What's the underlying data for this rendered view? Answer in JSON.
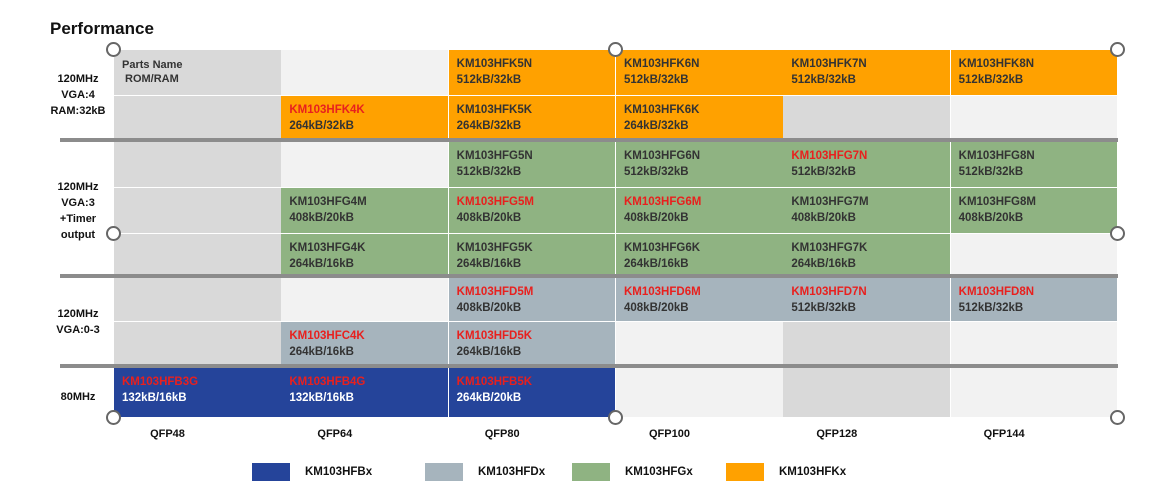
{
  "title": "Performance",
  "colors": {
    "HFB": "#25449a",
    "HFD": "#a6b4bd",
    "HFG": "#8fb382",
    "HFK": "#ffa100",
    "empty_gray": "#d9d9d9",
    "empty_light": "#f2f2f2",
    "separator": "#8c8c8c",
    "red_text": "#e8201e"
  },
  "header_cell": {
    "line1": "Parts Name",
    "line2": "ROM/RAM"
  },
  "row_groups": [
    {
      "lines": [
        "120MHz",
        "VGA:4",
        "RAM:32kB"
      ]
    },
    {
      "lines": [
        "120MHz",
        "VGA:3",
        "+Timer",
        "output"
      ]
    },
    {
      "lines": [
        "120MHz",
        "VGA:0-3"
      ]
    },
    {
      "lines": [
        "80MHz"
      ]
    }
  ],
  "columns": [
    "QFP48",
    "QFP64",
    "QFP80",
    "QFP100",
    "QFP128",
    "QFP144"
  ],
  "rows": [
    [
      null,
      null,
      {
        "name": "KM103HFK5N",
        "mem": "512kB/32kB",
        "family": "HFK",
        "red": false
      },
      {
        "name": "KM103HFK6N",
        "mem": "512kB/32kB",
        "family": "HFK",
        "red": false
      },
      {
        "name": "KM103HFK7N",
        "mem": "512kB/32kB",
        "family": "HFK",
        "red": false
      },
      {
        "name": "KM103HFK8N",
        "mem": "512kB/32kB",
        "family": "HFK",
        "red": false
      }
    ],
    [
      null,
      {
        "name": "KM103HFK4K",
        "mem": "264kB/32kB",
        "family": "HFK",
        "red": true
      },
      {
        "name": "KM103HFK5K",
        "mem": "264kB/32kB",
        "family": "HFK",
        "red": false
      },
      {
        "name": "KM103HFK6K",
        "mem": "264kB/32kB",
        "family": "HFK",
        "red": false
      },
      null,
      null
    ],
    [
      null,
      null,
      {
        "name": "KM103HFG5N",
        "mem": "512kB/32kB",
        "family": "HFG",
        "red": false
      },
      {
        "name": "KM103HFG6N",
        "mem": "512kB/32kB",
        "family": "HFG",
        "red": false
      },
      {
        "name": "KM103HFG7N",
        "mem": "512kB/32kB",
        "family": "HFG",
        "red": true
      },
      {
        "name": "KM103HFG8N",
        "mem": "512kB/32kB",
        "family": "HFG",
        "red": false
      }
    ],
    [
      null,
      {
        "name": "KM103HFG4M",
        "mem": "408kB/20kB",
        "family": "HFG",
        "red": false
      },
      {
        "name": "KM103HFG5M",
        "mem": "408kB/20kB",
        "family": "HFG",
        "red": true
      },
      {
        "name": "KM103HFG6M",
        "mem": "408kB/20kB",
        "family": "HFG",
        "red": true
      },
      {
        "name": "KM103HFG7M",
        "mem": "408kB/20kB",
        "family": "HFG",
        "red": false
      },
      {
        "name": "KM103HFG8M",
        "mem": "408kB/20kB",
        "family": "HFG",
        "red": false
      }
    ],
    [
      null,
      {
        "name": "KM103HFG4K",
        "mem": "264kB/16kB",
        "family": "HFG",
        "red": false
      },
      {
        "name": "KM103HFG5K",
        "mem": "264kB/16kB",
        "family": "HFG",
        "red": false
      },
      {
        "name": "KM103HFG6K",
        "mem": "264kB/16kB",
        "family": "HFG",
        "red": false
      },
      {
        "name": "KM103HFG7K",
        "mem": "264kB/16kB",
        "family": "HFG",
        "red": false
      },
      null
    ],
    [
      null,
      null,
      {
        "name": "KM103HFD5M",
        "mem": "408kB/20kB",
        "family": "HFD",
        "red": true
      },
      {
        "name": "KM103HFD6M",
        "mem": "408kB/20kB",
        "family": "HFD",
        "red": true
      },
      {
        "name": "KM103HFD7N",
        "mem": "512kB/32kB",
        "family": "HFD",
        "red": true
      },
      {
        "name": "KM103HFD8N",
        "mem": "512kB/32kB",
        "family": "HFD",
        "red": true
      }
    ],
    [
      null,
      {
        "name": "KM103HFC4K",
        "mem": "264kB/16kB",
        "family": "HFD",
        "red": true
      },
      {
        "name": "KM103HFD5K",
        "mem": "264kB/16kB",
        "family": "HFD",
        "red": true
      },
      null,
      null,
      null
    ],
    [
      {
        "name": "KM103HFB3G",
        "mem": "132kB/16kB",
        "family": "HFB",
        "red": true
      },
      {
        "name": "KM103HFB4G",
        "mem": "132kB/16kB",
        "family": "HFB",
        "red": true
      },
      {
        "name": "KM103HFB5K",
        "mem": "264kB/20kB",
        "family": "HFB",
        "red": true
      },
      null,
      null,
      null
    ]
  ],
  "legend": [
    {
      "label": "KM103HFBx",
      "family": "HFB"
    },
    {
      "label": "KM103HFDx",
      "family": "HFD"
    },
    {
      "label": "KM103HFGx",
      "family": "HFG"
    },
    {
      "label": "KM103HFKx",
      "family": "HFK"
    }
  ]
}
